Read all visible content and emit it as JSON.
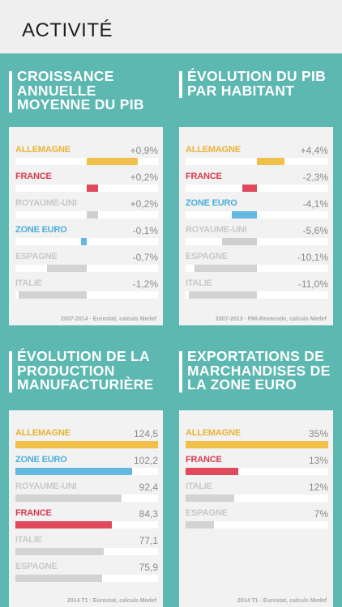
{
  "header": {
    "title": "ACTIVITÉ"
  },
  "panels": [
    {
      "title_lines": [
        "CROISSANCE",
        "ANNUELLE",
        "MOYENNE DU PIB"
      ],
      "kind": "signed",
      "max_abs": 1.2,
      "rows": [
        {
          "label": "ALLEMAGNE",
          "value_text": "+0,9%",
          "value": 0.9,
          "color": "#f0c04a",
          "label_color": "#e9b334"
        },
        {
          "label": "FRANCE",
          "value_text": "+0,2%",
          "value": 0.2,
          "color": "#e04a5c",
          "label_color": "#d83a4e"
        },
        {
          "label": "ROYAUME-UNI",
          "value_text": "+0,2%",
          "value": 0.2,
          "color": "#cfcfcf",
          "label_color": "#c8c8c8"
        },
        {
          "label": "ZONE EURO",
          "value_text": "-0,1%",
          "value": -0.1,
          "color": "#63b9e0",
          "label_color": "#4aaedc"
        },
        {
          "label": "ESPAGNE",
          "value_text": "-0,7%",
          "value": -0.7,
          "color": "#d3d3d3",
          "label_color": "#c8c8c8"
        },
        {
          "label": "ITALIE",
          "value_text": "-1,2%",
          "value": -1.2,
          "color": "#d3d3d3",
          "label_color": "#c8c8c8"
        }
      ],
      "source": "2007-2014 · Eurostat, calculs Medef"
    },
    {
      "title_lines": [
        "ÉVOLUTION DU PIB",
        "PAR HABITANT"
      ],
      "kind": "signed",
      "max_abs": 11.0,
      "rows": [
        {
          "label": "ALLEMAGNE",
          "value_text": "+4,4%",
          "value": 4.4,
          "color": "#f0c04a",
          "label_color": "#e9b334"
        },
        {
          "label": "FRANCE",
          "value_text": "-2,3%",
          "value": -2.3,
          "color": "#e04a5c",
          "label_color": "#d83a4e"
        },
        {
          "label": "ZONE EURO",
          "value_text": "-4,1%",
          "value": -4.1,
          "color": "#63b9e0",
          "label_color": "#4aaedc"
        },
        {
          "label": "ROYAUME-UNI",
          "value_text": "-5,6%",
          "value": -5.6,
          "color": "#cfcfcf",
          "label_color": "#c8c8c8"
        },
        {
          "label": "ESPAGNE",
          "value_text": "-10,1%",
          "value": -10.1,
          "color": "#d3d3d3",
          "label_color": "#c8c8c8"
        },
        {
          "label": "ITALIE",
          "value_text": "-11,0%",
          "value": -11.0,
          "color": "#d3d3d3",
          "label_color": "#c8c8c8"
        }
      ],
      "source": "2007-2013 · FMI-Rexecode, calculs Medef"
    },
    {
      "title_lines": [
        "ÉVOLUTION DE LA",
        "PRODUCTION",
        "MANUFACTURIÈRE"
      ],
      "kind": "positive",
      "max_value": 124.5,
      "rows": [
        {
          "label": "ALLEMAGNE",
          "value_text": "124,5",
          "value": 124.5,
          "color": "#f0c04a",
          "label_color": "#e9b334"
        },
        {
          "label": "ZONE EURO",
          "value_text": "102,2",
          "value": 102.2,
          "color": "#63b9e0",
          "label_color": "#4aaedc"
        },
        {
          "label": "ROYAUME-UNI",
          "value_text": "92,4",
          "value": 92.4,
          "color": "#d3d3d3",
          "label_color": "#c8c8c8"
        },
        {
          "label": "FRANCE",
          "value_text": "84,3",
          "value": 84.3,
          "color": "#e04a5c",
          "label_color": "#d83a4e"
        },
        {
          "label": "ITALIE",
          "value_text": "77,1",
          "value": 77.1,
          "color": "#d3d3d3",
          "label_color": "#c8c8c8"
        },
        {
          "label": "ESPAGNE",
          "value_text": "75,9",
          "value": 75.9,
          "color": "#d3d3d3",
          "label_color": "#c8c8c8"
        }
      ],
      "source": "2014 T1 · Eurostat, calculs Medef"
    },
    {
      "title_lines": [
        "EXPORTATIONS DE",
        "MARCHANDISES DE",
        "LA ZONE EURO"
      ],
      "kind": "positive",
      "max_value": 35,
      "rows": [
        {
          "label": "ALLEMAGNE",
          "value_text": "35%",
          "value": 35,
          "color": "#f0c04a",
          "label_color": "#e9b334"
        },
        {
          "label": "FRANCE",
          "value_text": "13%",
          "value": 13,
          "color": "#e04a5c",
          "label_color": "#d83a4e"
        },
        {
          "label": "ITALIE",
          "value_text": "12%",
          "value": 12,
          "color": "#d3d3d3",
          "label_color": "#c8c8c8"
        },
        {
          "label": "ESPAGNE",
          "value_text": "7%",
          "value": 7,
          "color": "#d3d3d3",
          "label_color": "#c8c8c8"
        }
      ],
      "source": "2014 T1 · Eurostat, calculs Medef"
    }
  ]
}
